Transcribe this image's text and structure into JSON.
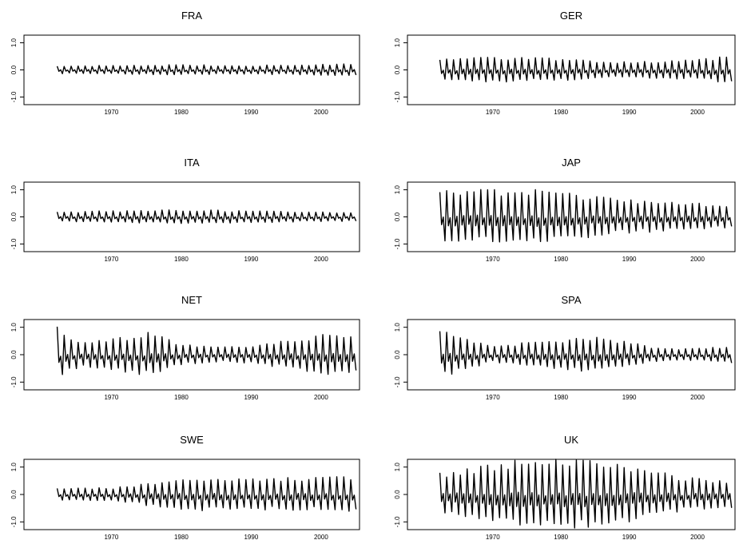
{
  "chart_data": [
    {
      "type": "line",
      "title": "FRA",
      "xlabel": "",
      "ylabel": "",
      "xlim": [
        1962,
        2005
      ],
      "ylim": [
        -1.0,
        1.0
      ],
      "x_ticks": [
        "1970",
        "1980",
        "1990",
        "2000"
      ],
      "y_ticks": [
        "-1.0",
        "0.0",
        "1.0"
      ],
      "series": [
        {
          "description": "seasonal cycle",
          "start": 1962.25,
          "end": 2005,
          "step": 0.25,
          "amplitude_at": [
            [
              1962,
              0.13
            ],
            [
              1970,
              0.15
            ],
            [
              1980,
              0.17
            ],
            [
              1990,
              0.15
            ],
            [
              2000,
              0.18
            ],
            [
              2005,
              0.2
            ]
          ]
        }
      ]
    },
    {
      "type": "line",
      "title": "GER",
      "xlabel": "",
      "ylabel": "",
      "xlim": [
        1962,
        2005
      ],
      "ylim": [
        -1.0,
        1.0
      ],
      "x_ticks": [
        "1970",
        "1980",
        "1990",
        "2000"
      ],
      "y_ticks": [
        "-1.0",
        "0.0",
        "1.0"
      ],
      "series": [
        {
          "description": "seasonal cycle",
          "start": 1962.25,
          "end": 2005,
          "step": 0.25,
          "amplitude_at": [
            [
              1962,
              0.35
            ],
            [
              1970,
              0.42
            ],
            [
              1980,
              0.38
            ],
            [
              1990,
              0.26
            ],
            [
              2000,
              0.33
            ],
            [
              2005,
              0.5
            ]
          ]
        }
      ]
    },
    {
      "type": "line",
      "title": "ITA",
      "xlabel": "",
      "ylabel": "",
      "xlim": [
        1962,
        2005
      ],
      "ylim": [
        -1.0,
        1.0
      ],
      "x_ticks": [
        "1970",
        "1980",
        "1990",
        "2000"
      ],
      "y_ticks": [
        "-1.0",
        "0.0",
        "1.0"
      ],
      "series": [
        {
          "description": "seasonal cycle",
          "start": 1962.25,
          "end": 2005,
          "step": 0.25,
          "amplitude_at": [
            [
              1962,
              0.17
            ],
            [
              1970,
              0.2
            ],
            [
              1980,
              0.24
            ],
            [
              1990,
              0.2
            ],
            [
              2000,
              0.16
            ],
            [
              2005,
              0.15
            ]
          ]
        }
      ]
    },
    {
      "type": "line",
      "title": "JAP",
      "xlabel": "",
      "ylabel": "",
      "xlim": [
        1962,
        2005
      ],
      "ylim": [
        -1.0,
        1.0
      ],
      "x_ticks": [
        "1970",
        "1980",
        "1990",
        "2000"
      ],
      "y_ticks": [
        "-1.0",
        "0.0",
        "1.0"
      ],
      "series": [
        {
          "description": "seasonal cycle",
          "start": 1962.25,
          "end": 2005,
          "step": 0.25,
          "amplitude_at": [
            [
              1962,
              0.85
            ],
            [
              1970,
              0.9
            ],
            [
              1976,
              0.92
            ],
            [
              1980,
              0.8
            ],
            [
              1990,
              0.55
            ],
            [
              2000,
              0.45
            ],
            [
              2005,
              0.38
            ]
          ]
        }
      ]
    },
    {
      "type": "line",
      "title": "NET",
      "xlabel": "",
      "ylabel": "",
      "xlim": [
        1962,
        2005
      ],
      "ylim": [
        -1.0,
        1.0
      ],
      "x_ticks": [
        "1970",
        "1980",
        "1990",
        "2000"
      ],
      "y_ticks": [
        "-1.0",
        "0.0",
        "1.0"
      ],
      "series": [
        {
          "description": "seasonal cycle",
          "start": 1962.25,
          "end": 2005,
          "step": 0.25,
          "amplitude_at": [
            [
              1962,
              1.0
            ],
            [
              1964,
              0.55
            ],
            [
              1966,
              0.4
            ],
            [
              1970,
              0.5
            ],
            [
              1976,
              0.75
            ],
            [
              1980,
              0.35
            ],
            [
              1985,
              0.25
            ],
            [
              1990,
              0.3
            ],
            [
              1995,
              0.45
            ],
            [
              2000,
              0.65
            ],
            [
              2005,
              0.7
            ]
          ]
        }
      ]
    },
    {
      "type": "line",
      "title": "SPA",
      "xlabel": "",
      "ylabel": "",
      "xlim": [
        1962,
        2005
      ],
      "ylim": [
        -1.0,
        1.0
      ],
      "x_ticks": [
        "1970",
        "1980",
        "1990",
        "2000"
      ],
      "y_ticks": [
        "-1.0",
        "0.0",
        "1.0"
      ],
      "series": [
        {
          "description": "seasonal cycle",
          "start": 1962.25,
          "end": 2005,
          "step": 0.25,
          "amplitude_at": [
            [
              1962,
              0.8
            ],
            [
              1965,
              0.6
            ],
            [
              1970,
              0.25
            ],
            [
              1975,
              0.4
            ],
            [
              1980,
              0.5
            ],
            [
              1985,
              0.6
            ],
            [
              1990,
              0.4
            ],
            [
              1995,
              0.2
            ],
            [
              2000,
              0.2
            ],
            [
              2005,
              0.3
            ]
          ]
        }
      ]
    },
    {
      "type": "line",
      "title": "SWE",
      "xlabel": "",
      "ylabel": "",
      "xlim": [
        1962,
        2005
      ],
      "ylim": [
        -1.0,
        1.0
      ],
      "x_ticks": [
        "1970",
        "1980",
        "1990",
        "2000"
      ],
      "y_ticks": [
        "-1.0",
        "0.0",
        "1.0"
      ],
      "series": [
        {
          "description": "seasonal cycle",
          "start": 1962.25,
          "end": 2005,
          "step": 0.25,
          "amplitude_at": [
            [
              1962,
              0.2
            ],
            [
              1970,
              0.22
            ],
            [
              1976,
              0.4
            ],
            [
              1982,
              0.55
            ],
            [
              1988,
              0.5
            ],
            [
              1995,
              0.55
            ],
            [
              2000,
              0.55
            ],
            [
              2005,
              0.6
            ]
          ]
        }
      ]
    },
    {
      "type": "line",
      "title": "UK",
      "xlabel": "",
      "ylabel": "",
      "xlim": [
        1962,
        2005
      ],
      "ylim": [
        -1.0,
        1.0
      ],
      "x_ticks": [
        "1970",
        "1980",
        "1990",
        "2000"
      ],
      "y_ticks": [
        "-1.0",
        "0.0",
        "1.0"
      ],
      "series": [
        {
          "description": "seasonal cycle",
          "start": 1962.25,
          "end": 2005,
          "step": 0.25,
          "amplitude_at": [
            [
              1962,
              0.7
            ],
            [
              1968,
              0.9
            ],
            [
              1973,
              1.1
            ],
            [
              1981,
              1.15
            ],
            [
              1988,
              1.05
            ],
            [
              1993,
              0.8
            ],
            [
              1998,
              0.55
            ],
            [
              2005,
              0.45
            ]
          ]
        }
      ]
    }
  ]
}
